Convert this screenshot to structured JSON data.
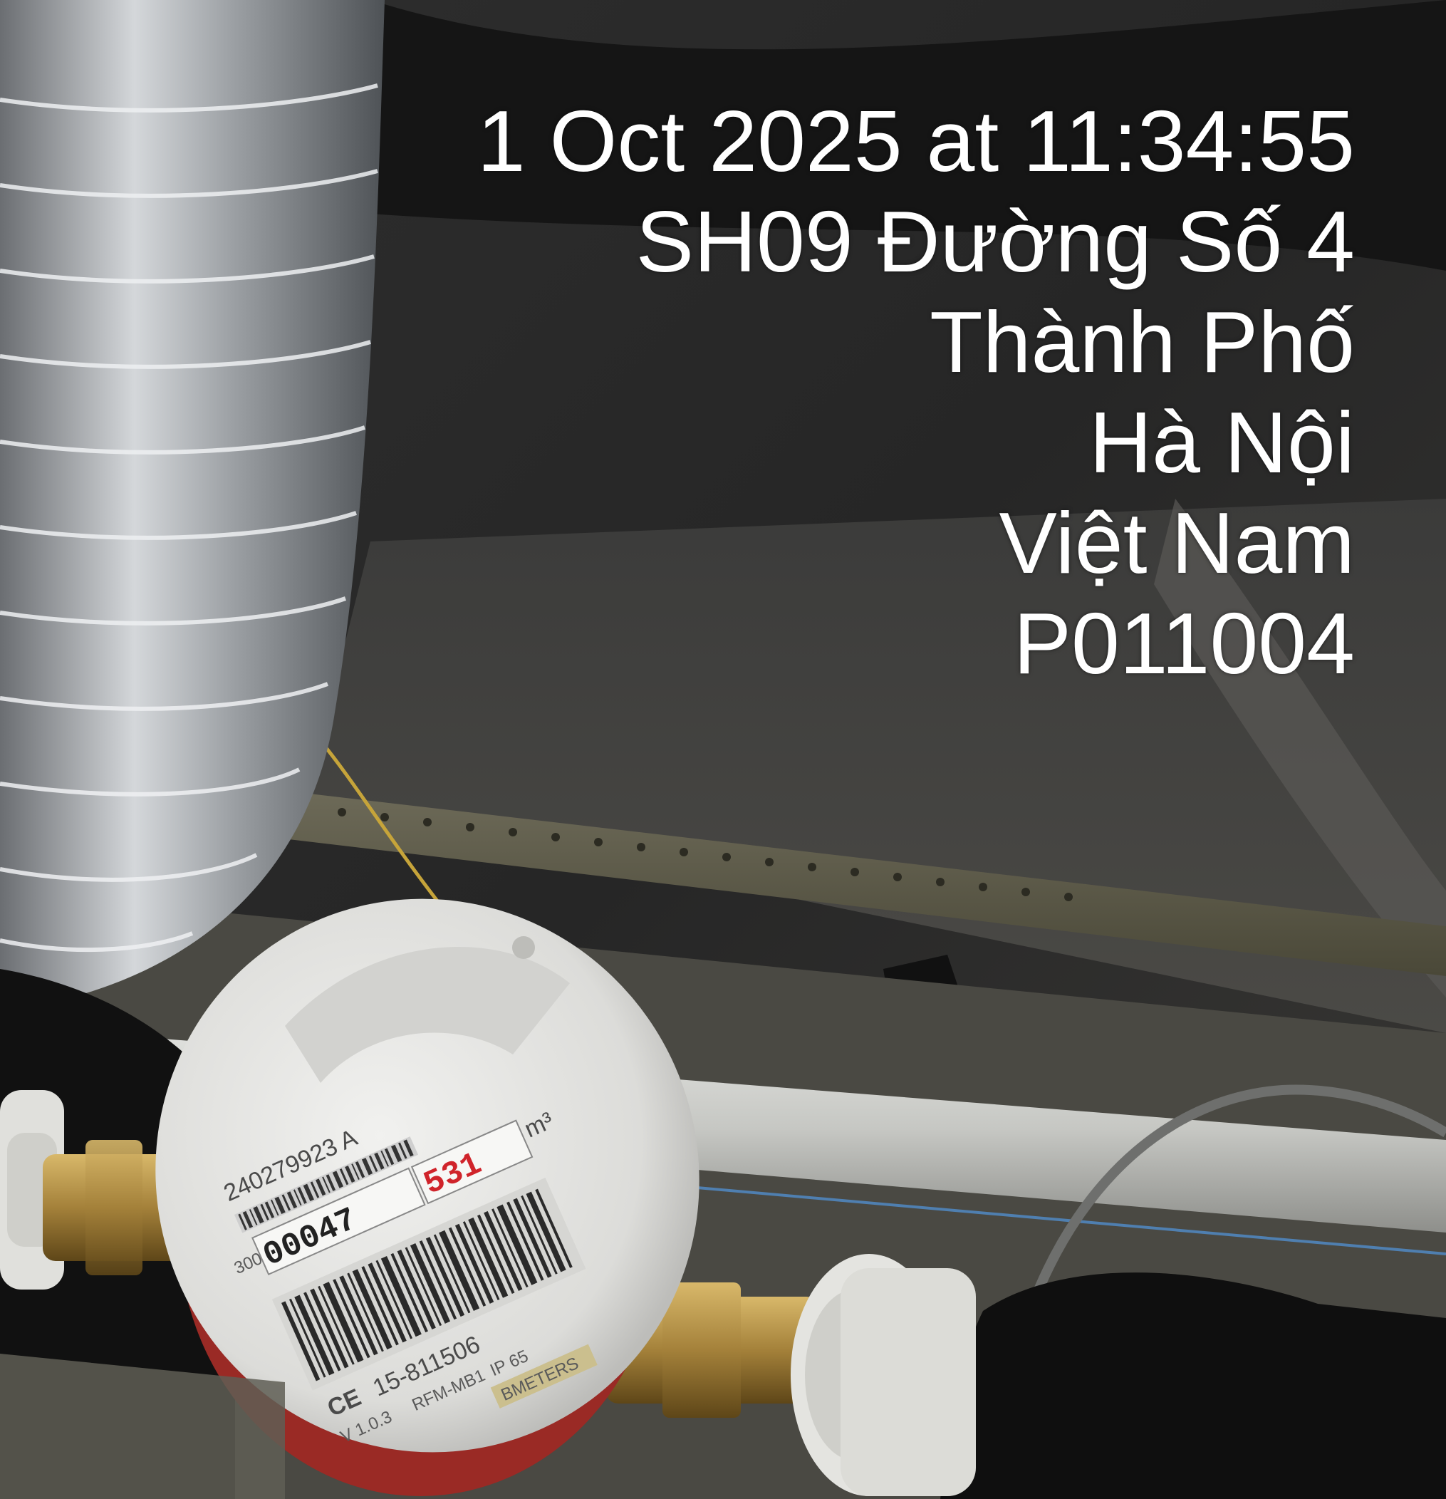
{
  "photo": {
    "description_icon": "water-meter-photo",
    "colors": {
      "background": "#1b1b1b",
      "ceiling": "#2a2a2a",
      "duct_foil": "#b9bcbf",
      "meter_body": "#e6e6e4",
      "meter_base": "#b8322c",
      "brass": "#a4813a",
      "pipe": "#c9cac7",
      "stamp_text": "#ffffff"
    }
  },
  "stamp": {
    "datetime": "1 Oct 2025 at 11:34:55",
    "address_line1": "SH09 Đường Số 4",
    "address_line2": "Thành Phố",
    "address_line3": "Hà Nội",
    "country": "Việt Nam",
    "code": "P011004"
  },
  "meter": {
    "serial": "240279923 A",
    "reading_black": "00047",
    "reading_red": "531",
    "unit": "m³",
    "model_number": "15-811506",
    "model_name": "RFM-MB1",
    "ip_rating": "IP 65",
    "version": "V 1.0.3",
    "brand": "BMETERS",
    "ce_mark": "CE",
    "prefix": "300"
  }
}
